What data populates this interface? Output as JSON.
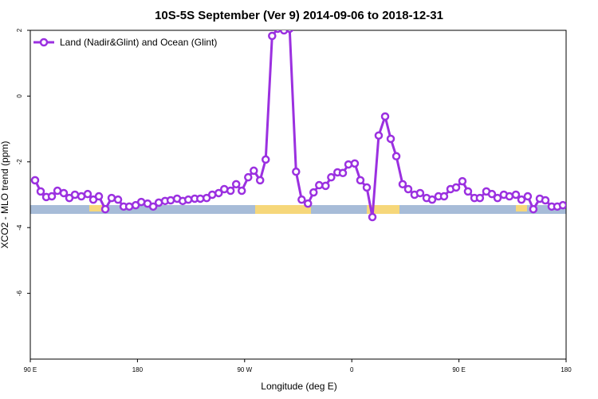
{
  "chart_data": {
    "type": "line",
    "title": "10S-5S September (Ver 9)   2014-09-06 to 2018-12-31",
    "x_label": "Longitude (deg E)",
    "y_label": "XCO2 - MLO trend (ppm)",
    "x": [
      94.0,
      98.7,
      103.4,
      108.1,
      112.8,
      118.1,
      122.8,
      127.5,
      132.9,
      138.2,
      142.9,
      147.6,
      153.0,
      158.3,
      163.7,
      168.4,
      173.1,
      178.5,
      183.2,
      188.5,
      193.2,
      197.9,
      203.2,
      207.9,
      213.3,
      218.0,
      222.7,
      228.1,
      232.8,
      238.1,
      242.8,
      248.2,
      252.9,
      258.2,
      262.9,
      267.6,
      273.0,
      277.7,
      283.0,
      287.7,
      293.1,
      297.8,
      303.1,
      307.8,
      313.2,
      317.9,
      323.2,
      327.9,
      332.6,
      338.0,
      342.7,
      348.0,
      352.5,
      357.2,
      362.5,
      367.2,
      372.6,
      377.3,
      382.6,
      388.0,
      392.7,
      397.4,
      402.7,
      407.4,
      412.7,
      417.4,
      422.8,
      427.5,
      432.8,
      437.5,
      442.9,
      447.6,
      452.9,
      457.6,
      463.0,
      467.6,
      473.0,
      477.7,
      482.4,
      487.7,
      492.4,
      497.8,
      502.5,
      507.8,
      512.5,
      517.9,
      522.6,
      527.9,
      532.6,
      537.3
    ],
    "series": [
      {
        "name": "Land (Nadir&Glint) and Ocean (Glint)",
        "color": "#9b30e0",
        "values": [
          -2.56,
          -2.9,
          -3.07,
          -3.05,
          -2.88,
          -2.95,
          -3.1,
          -3.0,
          -3.05,
          -2.98,
          -3.15,
          -3.05,
          -3.44,
          -3.1,
          -3.15,
          -3.36,
          -3.36,
          -3.32,
          -3.22,
          -3.27,
          -3.36,
          -3.24,
          -3.19,
          -3.17,
          -3.12,
          -3.19,
          -3.15,
          -3.12,
          -3.12,
          -3.1,
          -3.0,
          -2.95,
          -2.83,
          -2.88,
          -2.68,
          -2.88,
          -2.47,
          -2.27,
          -2.56,
          -1.93,
          1.83,
          2.05,
          2.0,
          2.05,
          -2.3,
          -3.15,
          -3.27,
          -2.93,
          -2.71,
          -2.73,
          -2.47,
          -2.32,
          -2.34,
          -2.08,
          -2.05,
          -2.56,
          -2.78,
          -3.68,
          -1.2,
          -0.62,
          -1.3,
          -1.83,
          -2.68,
          -2.83,
          -3.0,
          -2.95,
          -3.1,
          -3.15,
          -3.05,
          -3.05,
          -2.83,
          -2.78,
          -2.59,
          -2.9,
          -3.1,
          -3.1,
          -2.9,
          -2.98,
          -3.1,
          -3.0,
          -3.05,
          -3.0,
          -3.15,
          -3.05,
          -3.44,
          -3.12,
          -3.17,
          -3.36,
          -3.36,
          -3.32
        ]
      }
    ],
    "xlim": [
      90,
      540
    ],
    "xticks": [
      {
        "value": 90,
        "label": "90 E"
      },
      180,
      {
        "value": 270,
        "label": "90 W"
      },
      {
        "value": 360,
        "label": "0"
      },
      {
        "value": 450,
        "label": "90 E"
      },
      {
        "value": 540,
        "label": "180"
      }
    ],
    "ylim": [
      -8,
      2
    ],
    "yticks": [
      2,
      0,
      -2,
      -4,
      -6
    ],
    "legend": "top-left"
  }
}
